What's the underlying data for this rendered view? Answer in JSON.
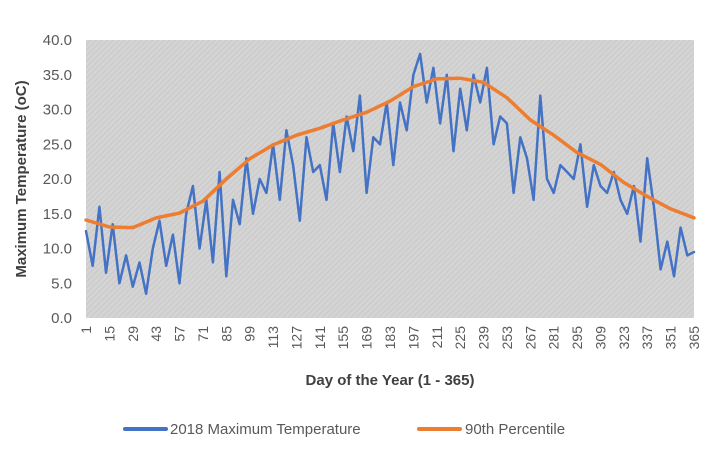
{
  "chart_data": {
    "type": "line",
    "title": "",
    "xlabel": "Day of the Year (1 - 365)",
    "ylabel": "Maximum Temperature (oC)",
    "xlim": [
      1,
      365
    ],
    "ylim": [
      0,
      40
    ],
    "y_ticks": [
      "0.0",
      "5.0",
      "10.0",
      "15.0",
      "20.0",
      "25.0",
      "30.0",
      "35.0",
      "40.0"
    ],
    "x_ticks": [
      "1",
      "15",
      "29",
      "43",
      "57",
      "71",
      "85",
      "99",
      "113",
      "127",
      "141",
      "155",
      "169",
      "183",
      "197",
      "211",
      "225",
      "239",
      "253",
      "267",
      "281",
      "295",
      "309",
      "323",
      "337",
      "351",
      "365"
    ],
    "grid": false,
    "plot_background": "hatched light gray",
    "legend_position": "bottom",
    "series": [
      {
        "name": "2018 Maximum Temperature",
        "color": "#4472C4",
        "x": [
          1,
          5,
          9,
          13,
          17,
          21,
          25,
          29,
          33,
          37,
          41,
          45,
          49,
          53,
          57,
          61,
          65,
          69,
          73,
          77,
          81,
          85,
          89,
          93,
          97,
          101,
          105,
          109,
          113,
          117,
          121,
          125,
          129,
          133,
          137,
          141,
          145,
          149,
          153,
          157,
          161,
          165,
          169,
          173,
          177,
          181,
          185,
          189,
          193,
          197,
          201,
          205,
          209,
          213,
          217,
          221,
          225,
          229,
          233,
          237,
          241,
          245,
          249,
          253,
          257,
          261,
          265,
          269,
          273,
          277,
          281,
          285,
          289,
          293,
          297,
          301,
          305,
          309,
          313,
          317,
          321,
          325,
          329,
          333,
          337,
          341,
          345,
          349,
          353,
          357,
          361,
          365
        ],
        "y": [
          12.5,
          7.5,
          16,
          6.5,
          13.5,
          5,
          9,
          4.5,
          8,
          3.5,
          10,
          14,
          7.5,
          12,
          5,
          15,
          19,
          10,
          17,
          8,
          21,
          6,
          17,
          13.5,
          23,
          15,
          20,
          18,
          25,
          17,
          27,
          22,
          14,
          26,
          21,
          22,
          17,
          28,
          21,
          29,
          24,
          32,
          18,
          26,
          25,
          31,
          22,
          31,
          27,
          35,
          38,
          31,
          36,
          28,
          35,
          24,
          33,
          27,
          35,
          31,
          36,
          25,
          29,
          28,
          18,
          26,
          23,
          17,
          32,
          20,
          18,
          22,
          21,
          20,
          25,
          16,
          22,
          19,
          18,
          21,
          17,
          15,
          19,
          11,
          23,
          16,
          7,
          11,
          6,
          13,
          9,
          9.5
        ]
      },
      {
        "name": "90th Percentile",
        "color": "#ED7D31",
        "x": [
          1,
          15,
          29,
          43,
          57,
          71,
          85,
          99,
          113,
          127,
          141,
          155,
          169,
          183,
          197,
          211,
          225,
          239,
          253,
          267,
          281,
          295,
          309,
          323,
          337,
          351,
          365
        ],
        "y": [
          14.1,
          13.1,
          13.0,
          14.4,
          15.1,
          16.8,
          20.0,
          22.9,
          24.9,
          26.3,
          27.3,
          28.5,
          29.6,
          31.2,
          33.3,
          34.4,
          34.5,
          33.9,
          31.7,
          28.5,
          26.3,
          23.8,
          22.1,
          19.5,
          17.5,
          15.7,
          14.4
        ]
      }
    ]
  }
}
